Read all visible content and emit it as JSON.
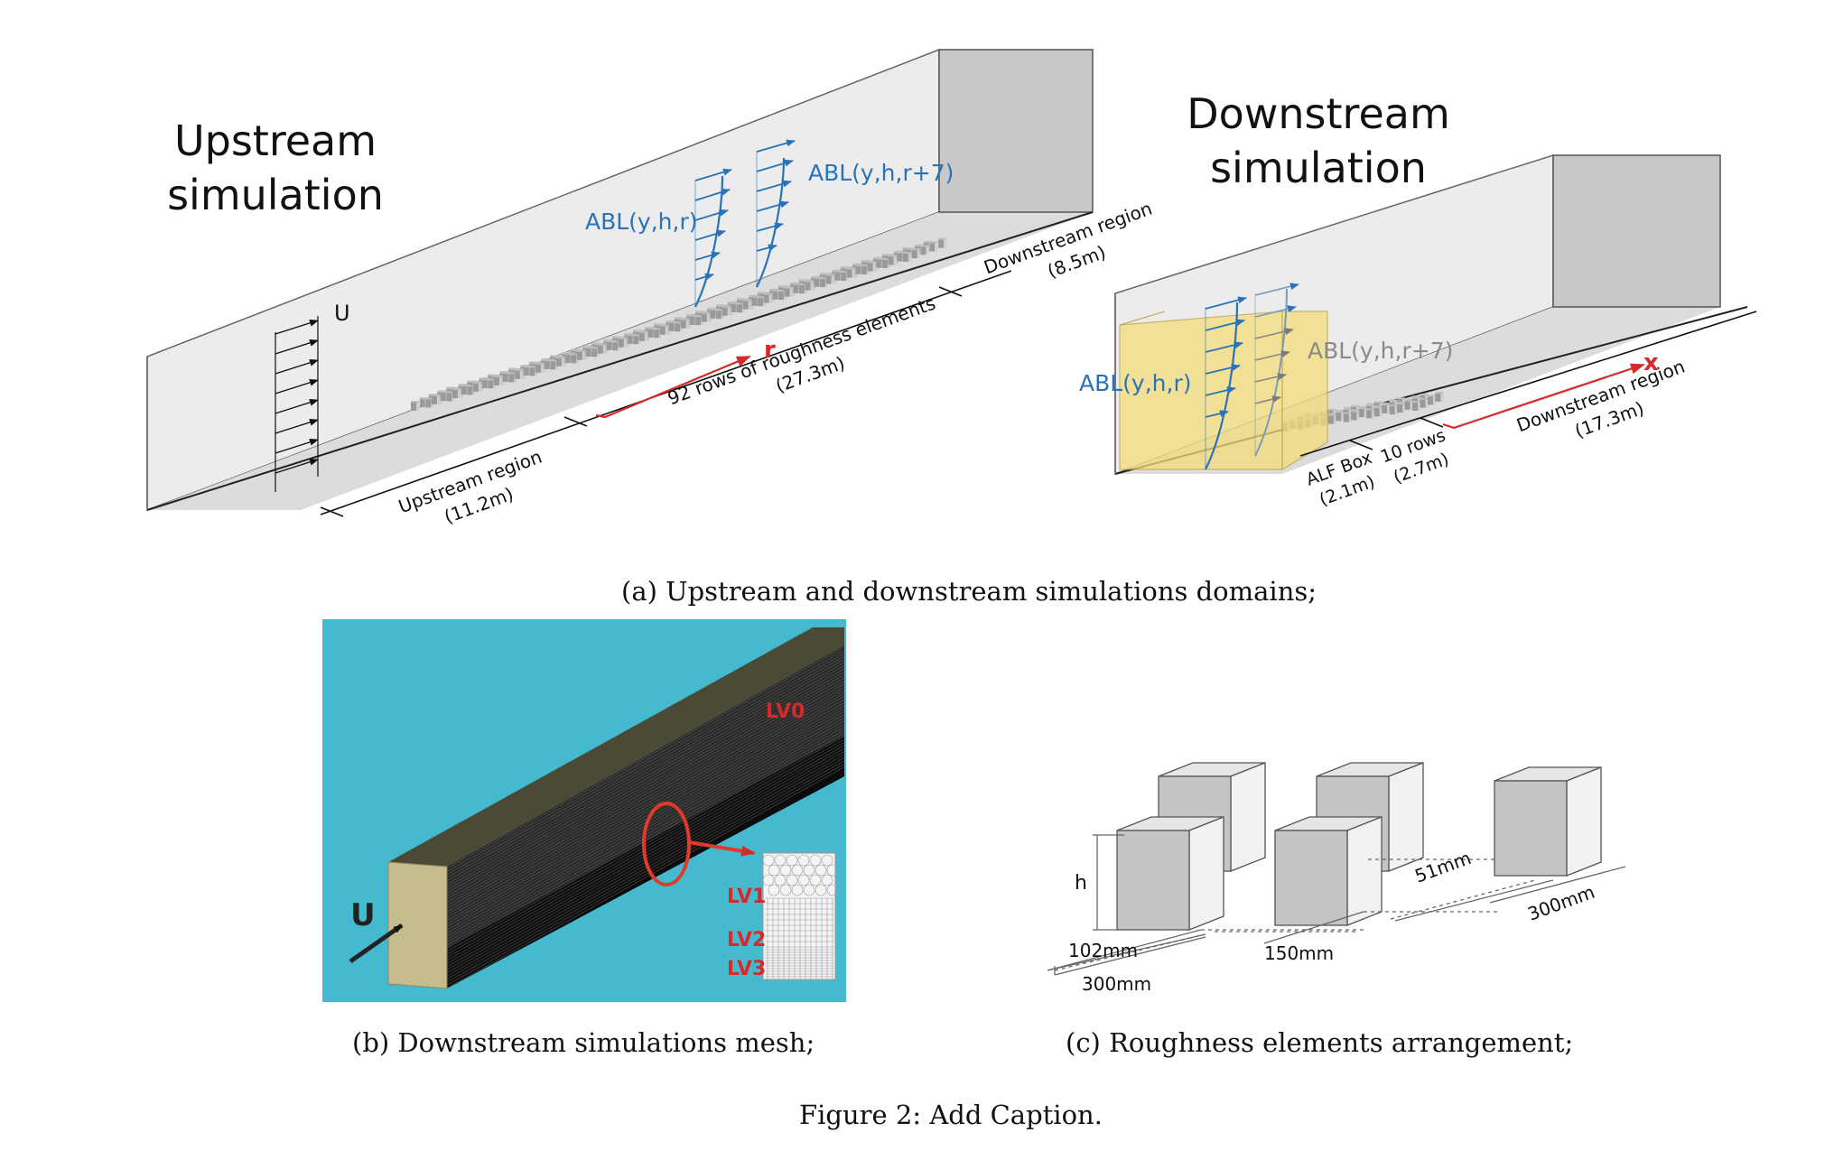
{
  "panel_a": {
    "upstream_title": [
      "Upstream",
      "simulation"
    ],
    "downstream_title": [
      "Downstream",
      "simulation"
    ],
    "inflow_label": "U",
    "abl_r": "ABL(y,h,r)",
    "abl_r7": "ABL(y,h,r+7)",
    "r_axis": "r",
    "x_axis": "x",
    "upstream_region": [
      "Upstream region",
      "(11.2m)"
    ],
    "rows_label": [
      "92 rows of roughness elements",
      "(27.3m)"
    ],
    "downstream_region_up": [
      "Downstream region",
      "(8.5m)"
    ],
    "alf_box": [
      "ALF Box",
      "(2.1m)"
    ],
    "ten_rows": [
      "10 rows",
      "(2.7m)"
    ],
    "downstream_region_down": [
      "Downstream region",
      "(17.3m)"
    ],
    "caption": "(a) Upstream and downstream simulations domains;"
  },
  "panel_b": {
    "inflow_label": "U",
    "levels": [
      "LV0",
      "LV1",
      "LV2",
      "LV3"
    ],
    "caption": "(b) Downstream simulations mesh;"
  },
  "panel_c": {
    "height_label": "h",
    "dims": [
      "102mm",
      "300mm",
      "150mm",
      "51mm",
      "300mm"
    ],
    "caption": "(c) Roughness elements arrangement;"
  },
  "figure_caption": "Figure 2: Add Caption.",
  "colors": {
    "abl_blue": "#2a73b8",
    "axis_red": "#d62a2a",
    "alf_yellow": "#f5dc7a",
    "mesh_bg": "#45b9ce",
    "mesh_face": "#c6bd8c"
  }
}
